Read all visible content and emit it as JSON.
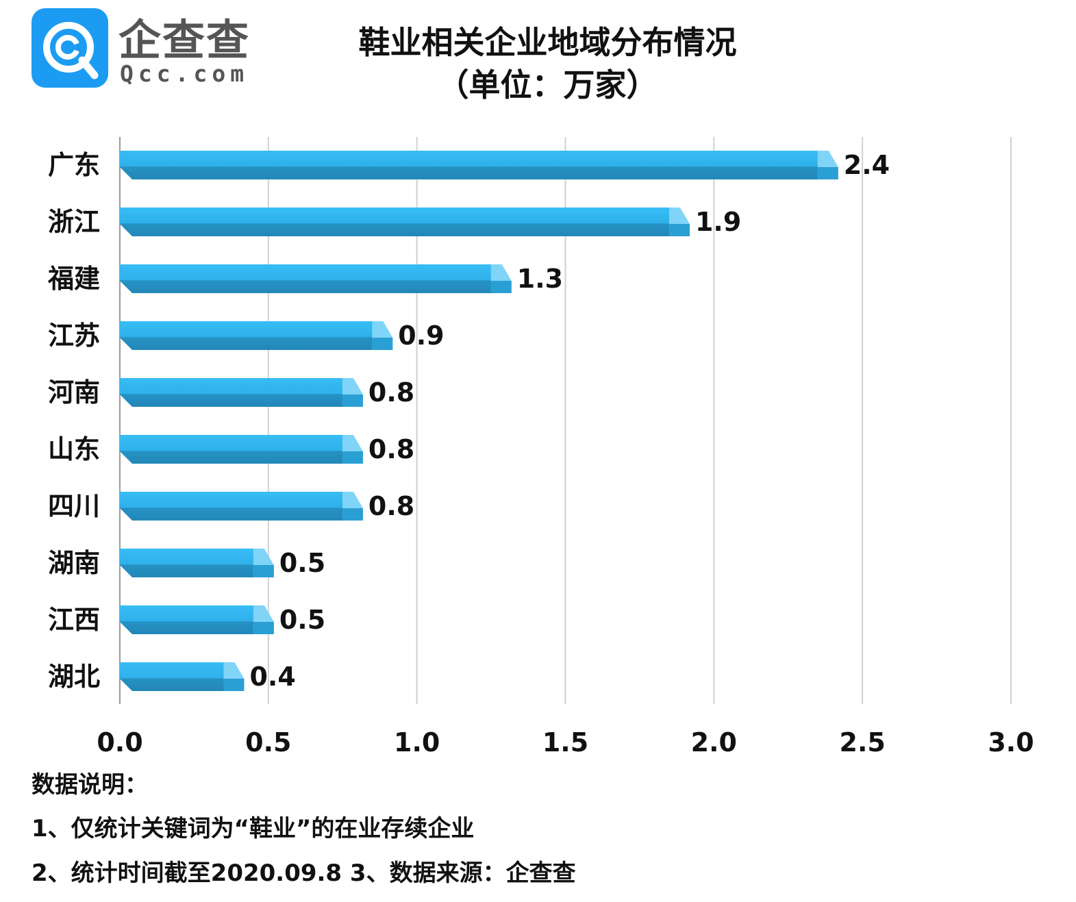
{
  "brand": {
    "name": "企查查",
    "domain": "Qcc.com"
  },
  "header": {
    "title": "鞋业相关企业地域分布情况",
    "subtitle": "（单位：万家）"
  },
  "chart_data": {
    "type": "bar",
    "orientation": "horizontal",
    "title": "鞋业相关企业地域分布情况",
    "unit": "（单位：万家）",
    "categories": [
      "广东",
      "浙江",
      "福建",
      "江苏",
      "河南",
      "山东",
      "四川",
      "湖南",
      "江西",
      "湖北"
    ],
    "values": [
      2.4,
      1.9,
      1.3,
      0.9,
      0.8,
      0.8,
      0.8,
      0.5,
      0.5,
      0.4
    ],
    "value_labels": [
      "2.4",
      "1.9",
      "1.3",
      "0.9",
      "0.8",
      "0.8",
      "0.8",
      "0.5",
      "0.5",
      "0.4"
    ],
    "xlim": [
      0,
      3.0
    ],
    "xticks": [
      "0.0",
      "0.5",
      "1.0",
      "1.5",
      "2.0",
      "2.5",
      "3.0"
    ],
    "xlabel": "",
    "ylabel": "",
    "grid": true,
    "legend": "none",
    "colors": {
      "bar_top": "#30b6f0",
      "bar_bottom": "#2592c4",
      "bar_end": "#7fd4f8",
      "grid": "#d0d0d0",
      "axis": "#999999"
    }
  },
  "notes": {
    "heading": "数据说明：",
    "line1": "1、仅统计关键词为“鞋业”的在业存续企业",
    "line2": "2、统计时间截至2020.09.8    3、数据来源：企查查"
  }
}
